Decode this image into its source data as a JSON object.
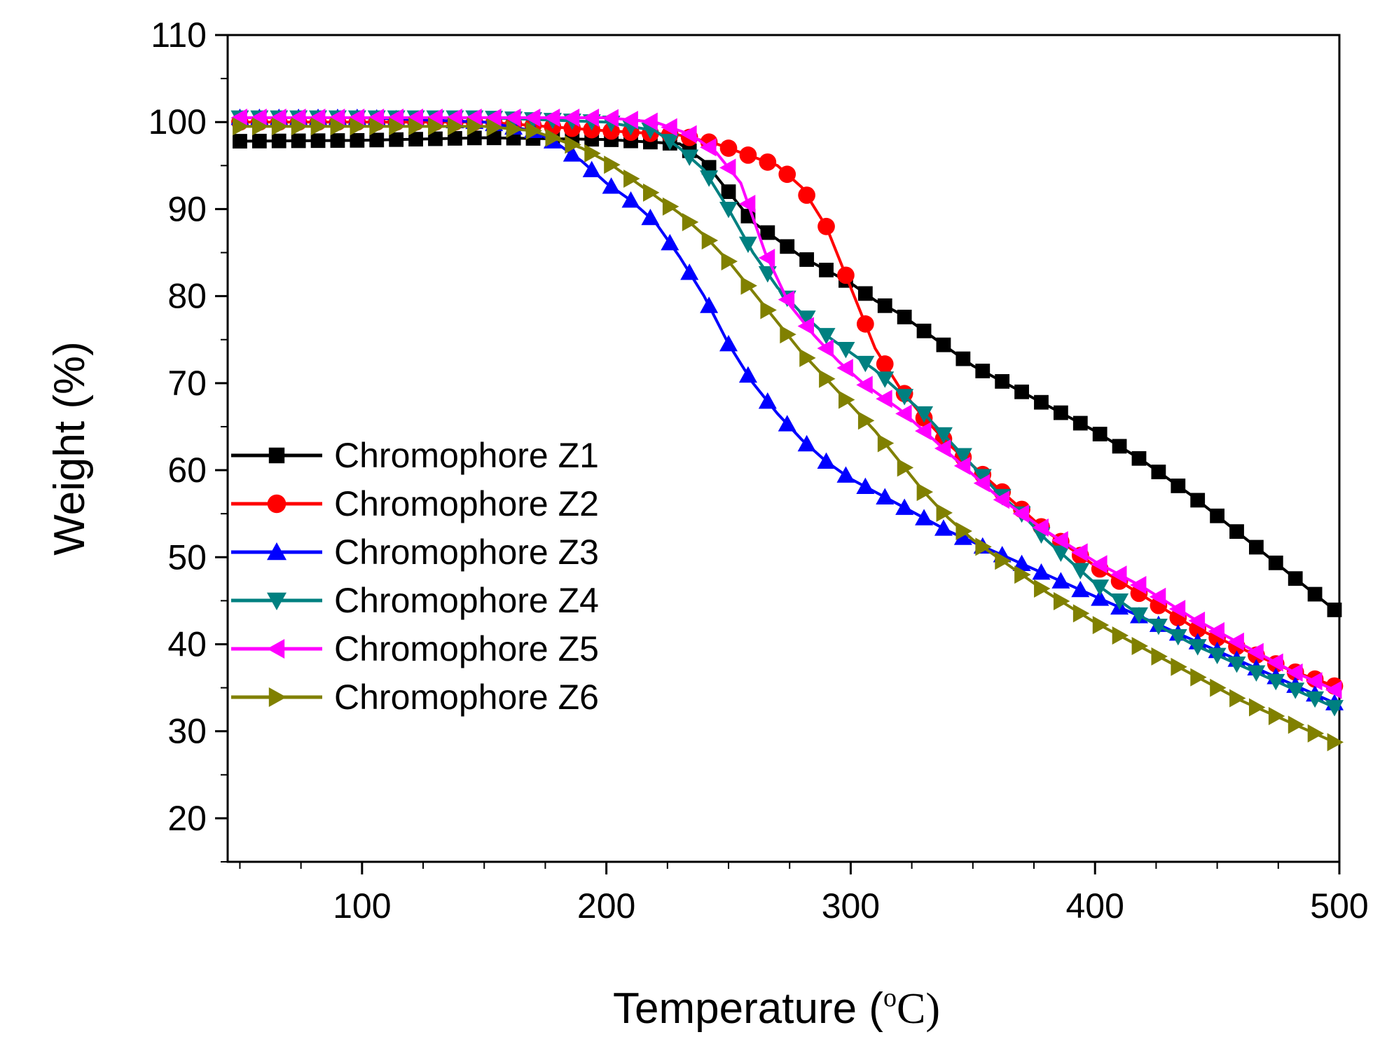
{
  "chart_data": {
    "type": "line",
    "title": "",
    "xlabel": "Temperature (",
    "xlabel_unit_sup": "o",
    "xlabel_unit": "C)",
    "ylabel": "Weight (%)",
    "xlim": [
      45,
      500
    ],
    "ylim": [
      15,
      110
    ],
    "xticks": [
      100,
      200,
      300,
      400,
      500
    ],
    "yticks": [
      20,
      30,
      40,
      50,
      60,
      70,
      80,
      90,
      100,
      110
    ],
    "legend_position": "center-left",
    "series": [
      {
        "name": "Chromophore Z1",
        "color": "#000000",
        "marker": "square",
        "points": [
          [
            50,
            97.8
          ],
          [
            100,
            97.9
          ],
          [
            150,
            98.2
          ],
          [
            200,
            98.0
          ],
          [
            230,
            97.5
          ],
          [
            240,
            95.5
          ],
          [
            250,
            92.0
          ],
          [
            260,
            88.5
          ],
          [
            270,
            86.5
          ],
          [
            280,
            84.5
          ],
          [
            290,
            83.0
          ],
          [
            300,
            81.5
          ],
          [
            310,
            79.5
          ],
          [
            320,
            78.0
          ],
          [
            330,
            76.0
          ],
          [
            340,
            74.0
          ],
          [
            350,
            72.0
          ],
          [
            360,
            70.5
          ],
          [
            380,
            67.5
          ],
          [
            400,
            64.5
          ],
          [
            420,
            61.0
          ],
          [
            440,
            57.0
          ],
          [
            460,
            52.5
          ],
          [
            480,
            48.0
          ],
          [
            500,
            43.5
          ]
        ]
      },
      {
        "name": "Chromophore Z2",
        "color": "#ff0000",
        "marker": "circle",
        "points": [
          [
            50,
            100.0
          ],
          [
            100,
            100.0
          ],
          [
            150,
            100.0
          ],
          [
            200,
            99.0
          ],
          [
            230,
            98.5
          ],
          [
            245,
            97.5
          ],
          [
            260,
            96.0
          ],
          [
            270,
            95.0
          ],
          [
            280,
            92.5
          ],
          [
            290,
            88.0
          ],
          [
            300,
            81.0
          ],
          [
            310,
            74.0
          ],
          [
            320,
            69.5
          ],
          [
            330,
            66.0
          ],
          [
            340,
            63.0
          ],
          [
            350,
            60.5
          ],
          [
            360,
            58.0
          ],
          [
            370,
            55.5
          ],
          [
            380,
            53.0
          ],
          [
            400,
            49.0
          ],
          [
            420,
            45.5
          ],
          [
            440,
            42.0
          ],
          [
            460,
            39.5
          ],
          [
            480,
            37.0
          ],
          [
            500,
            35.0
          ]
        ]
      },
      {
        "name": "Chromophore Z3",
        "color": "#0000ff",
        "marker": "triangle-up",
        "points": [
          [
            50,
            100.5
          ],
          [
            100,
            100.5
          ],
          [
            150,
            100.0
          ],
          [
            170,
            99.0
          ],
          [
            180,
            97.5
          ],
          [
            190,
            95.5
          ],
          [
            200,
            93.0
          ],
          [
            210,
            91.0
          ],
          [
            220,
            88.5
          ],
          [
            230,
            84.5
          ],
          [
            240,
            80.0
          ],
          [
            250,
            74.5
          ],
          [
            260,
            70.0
          ],
          [
            270,
            66.5
          ],
          [
            280,
            63.5
          ],
          [
            290,
            61.0
          ],
          [
            300,
            59.0
          ],
          [
            320,
            56.0
          ],
          [
            340,
            53.0
          ],
          [
            360,
            50.5
          ],
          [
            380,
            48.0
          ],
          [
            400,
            45.5
          ],
          [
            420,
            43.0
          ],
          [
            440,
            40.5
          ],
          [
            460,
            38.0
          ],
          [
            480,
            35.5
          ],
          [
            500,
            33.0
          ]
        ]
      },
      {
        "name": "Chromophore Z4",
        "color": "#008080",
        "marker": "triangle-down",
        "points": [
          [
            50,
            100.5
          ],
          [
            100,
            100.5
          ],
          [
            150,
            100.5
          ],
          [
            200,
            100.0
          ],
          [
            220,
            99.0
          ],
          [
            230,
            97.0
          ],
          [
            240,
            94.5
          ],
          [
            250,
            90.0
          ],
          [
            260,
            85.0
          ],
          [
            270,
            81.0
          ],
          [
            280,
            78.0
          ],
          [
            290,
            75.5
          ],
          [
            300,
            73.5
          ],
          [
            310,
            71.5
          ],
          [
            320,
            69.0
          ],
          [
            330,
            66.5
          ],
          [
            340,
            63.5
          ],
          [
            350,
            60.5
          ],
          [
            360,
            57.5
          ],
          [
            370,
            55.0
          ],
          [
            380,
            52.0
          ],
          [
            400,
            47.0
          ],
          [
            420,
            43.0
          ],
          [
            440,
            40.0
          ],
          [
            460,
            37.5
          ],
          [
            480,
            35.0
          ],
          [
            500,
            32.5
          ]
        ]
      },
      {
        "name": "Chromophore Z5",
        "color": "#ff00ff",
        "marker": "triangle-left",
        "points": [
          [
            50,
            100.5
          ],
          [
            100,
            100.5
          ],
          [
            150,
            100.5
          ],
          [
            200,
            100.5
          ],
          [
            220,
            100.0
          ],
          [
            235,
            98.5
          ],
          [
            245,
            96.5
          ],
          [
            255,
            93.0
          ],
          [
            265,
            85.0
          ],
          [
            275,
            79.0
          ],
          [
            285,
            75.5
          ],
          [
            295,
            72.5
          ],
          [
            305,
            70.0
          ],
          [
            320,
            67.0
          ],
          [
            340,
            62.0
          ],
          [
            360,
            57.0
          ],
          [
            380,
            53.0
          ],
          [
            400,
            49.5
          ],
          [
            420,
            46.5
          ],
          [
            440,
            43.0
          ],
          [
            460,
            40.0
          ],
          [
            480,
            37.0
          ],
          [
            500,
            34.5
          ]
        ]
      },
      {
        "name": "Chromophore Z6",
        "color": "#808000",
        "marker": "triangle-right",
        "points": [
          [
            50,
            99.5
          ],
          [
            100,
            99.5
          ],
          [
            150,
            99.5
          ],
          [
            170,
            99.0
          ],
          [
            190,
            97.0
          ],
          [
            200,
            95.5
          ],
          [
            210,
            93.5
          ],
          [
            220,
            91.5
          ],
          [
            230,
            89.5
          ],
          [
            240,
            87.0
          ],
          [
            250,
            84.0
          ],
          [
            260,
            80.5
          ],
          [
            270,
            77.0
          ],
          [
            280,
            73.5
          ],
          [
            290,
            70.5
          ],
          [
            300,
            67.5
          ],
          [
            310,
            64.5
          ],
          [
            320,
            61.0
          ],
          [
            330,
            57.5
          ],
          [
            340,
            54.5
          ],
          [
            350,
            52.0
          ],
          [
            360,
            50.0
          ],
          [
            380,
            46.0
          ],
          [
            400,
            42.5
          ],
          [
            420,
            39.5
          ],
          [
            440,
            36.5
          ],
          [
            460,
            33.5
          ],
          [
            480,
            31.0
          ],
          [
            500,
            28.5
          ]
        ]
      }
    ]
  }
}
